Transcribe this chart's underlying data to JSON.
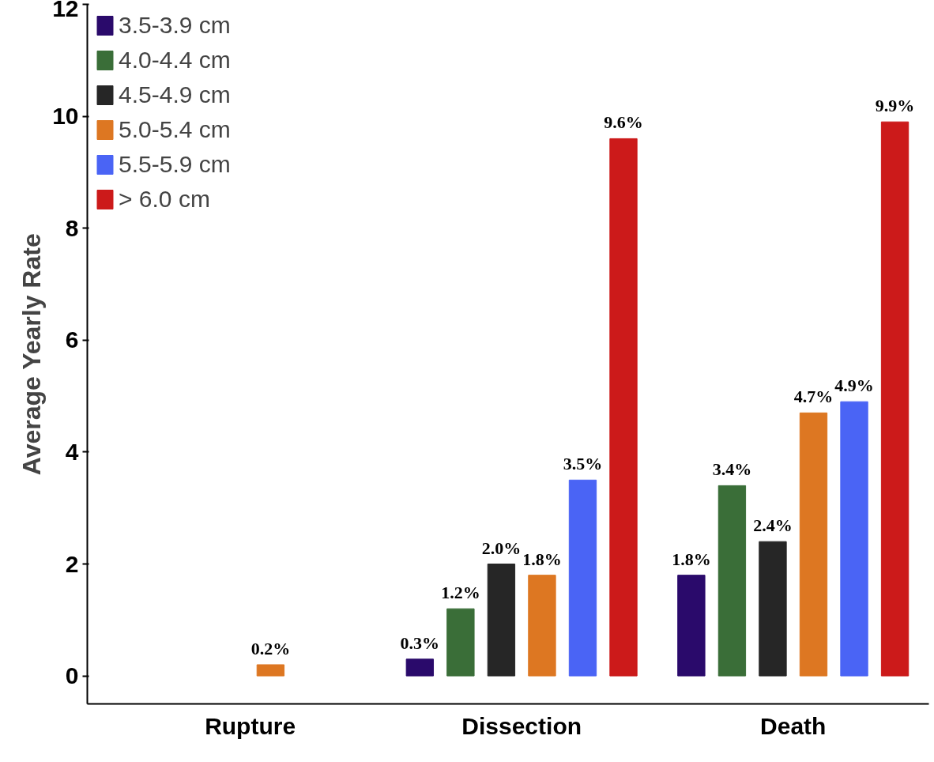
{
  "chart_data": {
    "type": "bar",
    "ylabel": "Average Yearly Rate",
    "categories": [
      "Rupture",
      "Dissection",
      "Death"
    ],
    "ylim": [
      -0.5,
      12
    ],
    "yticks": [
      0,
      2,
      4,
      6,
      8,
      10,
      12
    ],
    "grid": false,
    "legend": "top left",
    "series": [
      {
        "name": "3.5-3.9 cm",
        "color": "#2a0a6b",
        "values": [
          null,
          0.3,
          1.8
        ],
        "value_labels": [
          null,
          "0.3%",
          "1.8%"
        ]
      },
      {
        "name": "4.0-4.4 cm",
        "color": "#3a6e38",
        "values": [
          null,
          1.2,
          3.4
        ],
        "value_labels": [
          null,
          "1.2%",
          "3.4%"
        ]
      },
      {
        "name": "4.5-4.9 cm",
        "color": "#262626",
        "values": [
          null,
          2.0,
          2.4
        ],
        "value_labels": [
          null,
          "2.0%",
          "2.4%"
        ]
      },
      {
        "name": "5.0-5.4 cm",
        "color": "#dd7722",
        "values": [
          0.2,
          1.8,
          4.7
        ],
        "value_labels": [
          "0.2%",
          "1.8%",
          "4.7%"
        ]
      },
      {
        "name": "5.5-5.9 cm",
        "color": "#4a64f5",
        "values": [
          null,
          3.5,
          4.9
        ],
        "value_labels": [
          null,
          "3.5%",
          "4.9%"
        ]
      },
      {
        "name": "> 6.0 cm",
        "color": "#cc1a1a",
        "values": [
          null,
          9.6,
          9.9
        ],
        "value_labels": [
          null,
          "9.6%",
          "9.9%"
        ]
      }
    ]
  }
}
